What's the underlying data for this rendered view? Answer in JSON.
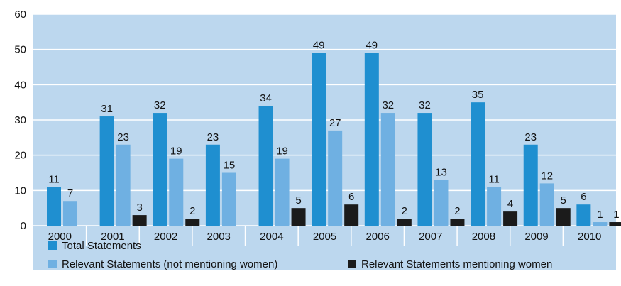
{
  "colors": {
    "plot_background": "#bcd7ee",
    "gridline": "#ffffff",
    "divider": "#ffffff"
  },
  "chart_data": {
    "type": "bar",
    "title": "",
    "xlabel": "",
    "ylabel": "",
    "ylim": [
      0,
      60
    ],
    "y_ticks": [
      "0",
      "10",
      "20",
      "30",
      "40",
      "50",
      "60"
    ],
    "grid": true,
    "legend_position": "bottom",
    "categories": [
      "2000",
      "2001",
      "2002",
      "2003",
      "2004",
      "2005",
      "2006",
      "2007",
      "2008",
      "2009",
      "2010"
    ],
    "series": [
      {
        "name": "Total Statements",
        "color": "#1f8fd0",
        "values": [
          11,
          31,
          32,
          23,
          34,
          49,
          49,
          32,
          35,
          23,
          6
        ]
      },
      {
        "name": "Relevant Statements (not mentioning women)",
        "color": "#6fb0e2",
        "values": [
          7,
          23,
          19,
          15,
          19,
          27,
          32,
          13,
          11,
          12,
          1
        ]
      },
      {
        "name": "Relevant Statements mentioning women",
        "color": "#1b1b1b",
        "values": [
          null,
          3,
          2,
          null,
          5,
          6,
          2,
          2,
          4,
          5,
          1
        ]
      }
    ]
  }
}
